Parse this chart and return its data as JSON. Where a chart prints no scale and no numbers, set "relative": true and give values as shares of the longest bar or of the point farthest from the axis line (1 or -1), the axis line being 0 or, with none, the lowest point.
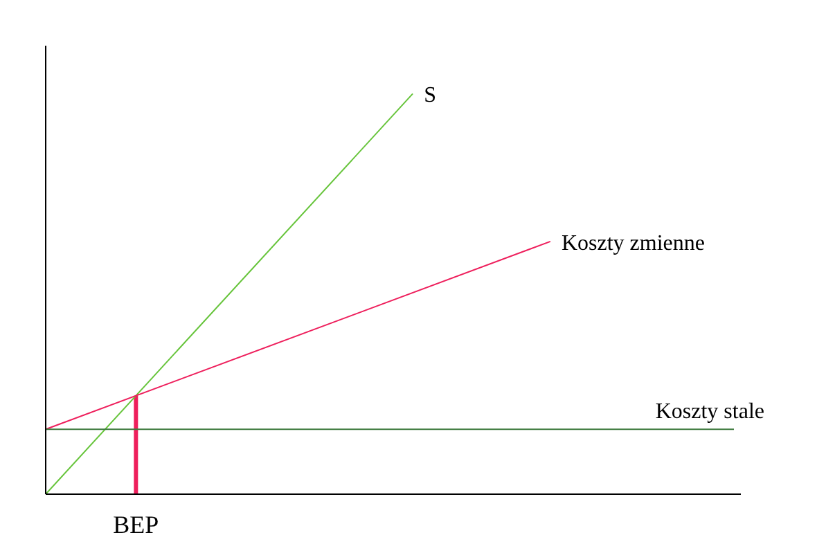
{
  "chart_data": {
    "type": "line",
    "relative": true,
    "legend": false,
    "grid": false,
    "marker": "none",
    "annotations": [
      "BEP"
    ],
    "categories": [
      null,
      null,
      null,
      null,
      null,
      null,
      null,
      null,
      null,
      null,
      null,
      null,
      null,
      null,
      null,
      null
    ],
    "series": [
      {
        "name": "S",
        "color": "#66c43a",
        "values": [
          0,
          null,
          null,
          null,
          null,
          null,
          null,
          null,
          1,
          null,
          null,
          null,
          null,
          null,
          null,
          null
        ]
      },
      {
        "name": "Koszty zmienne",
        "color": "#ee1f5c",
        "values": [
          0.162,
          null,
          null,
          null,
          null,
          null,
          null,
          null,
          null,
          null,
          null,
          0.631,
          null,
          null,
          null,
          null
        ]
      },
      {
        "name": "Koszty stale",
        "color": "#3d7a3d",
        "values": [
          0.162,
          null,
          null,
          null,
          null,
          null,
          null,
          null,
          null,
          null,
          null,
          null,
          null,
          null,
          null,
          0.162
        ]
      }
    ]
  }
}
